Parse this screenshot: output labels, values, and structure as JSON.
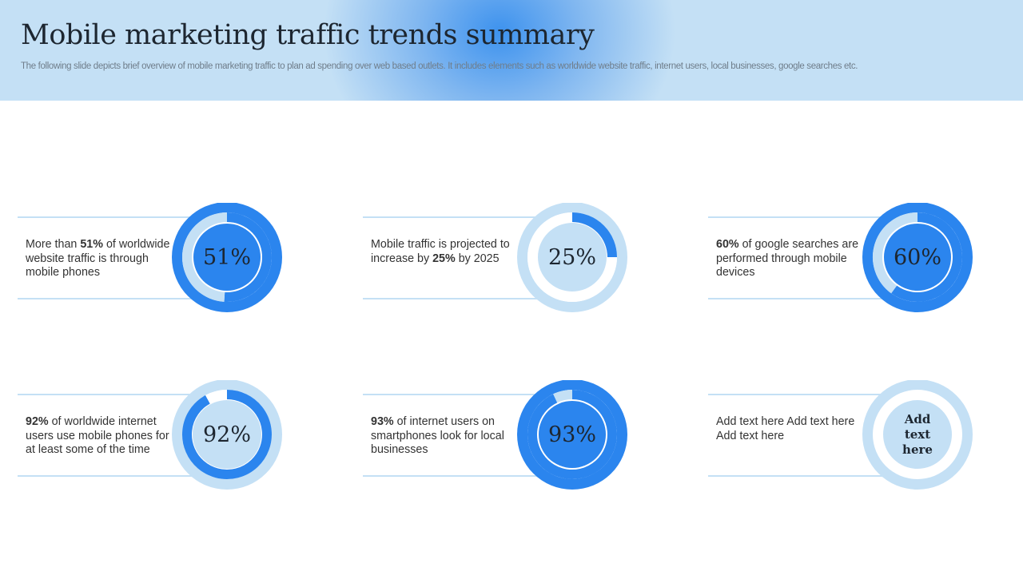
{
  "header": {
    "title": "Mobile marketing traffic trends summary",
    "subtitle": "The following slide depicts brief overview of mobile marketing traffic to plan ad spending over web based outlets. It includes elements such as worldwide website traffic, internet users, local businesses, google searches etc."
  },
  "colors": {
    "accent": "#2b85ee",
    "light": "#c4e0f5",
    "text": "#333333"
  },
  "cards": [
    {
      "pre": "More than ",
      "bold": "51%",
      "post": " of worldwide website traffic is through mobile phones",
      "value_label": "51%",
      "percent": 51,
      "variant": "dark"
    },
    {
      "pre": "Mobile traffic is projected to increase by ",
      "bold": "25%",
      "post": " by 2025",
      "value_label": "25%",
      "percent": 25,
      "variant": "light"
    },
    {
      "pre": "",
      "bold": "60%",
      "post": " of google searches are performed through mobile devices",
      "value_label": "60%",
      "percent": 60,
      "variant": "dark"
    },
    {
      "pre": "",
      "bold": "92%",
      "post": " of worldwide internet users use mobile phones for at least some of the time",
      "value_label": "92%",
      "percent": 92,
      "variant": "light"
    },
    {
      "pre": "",
      "bold": "93%",
      "post": " of internet users on smartphones look for local businesses",
      "value_label": "93%",
      "percent": 93,
      "variant": "dark"
    },
    {
      "pre": "Add text here Add text here Add text here",
      "bold": "",
      "post": "",
      "value_label": "Add text here",
      "percent": 100,
      "variant": "light"
    }
  ]
}
